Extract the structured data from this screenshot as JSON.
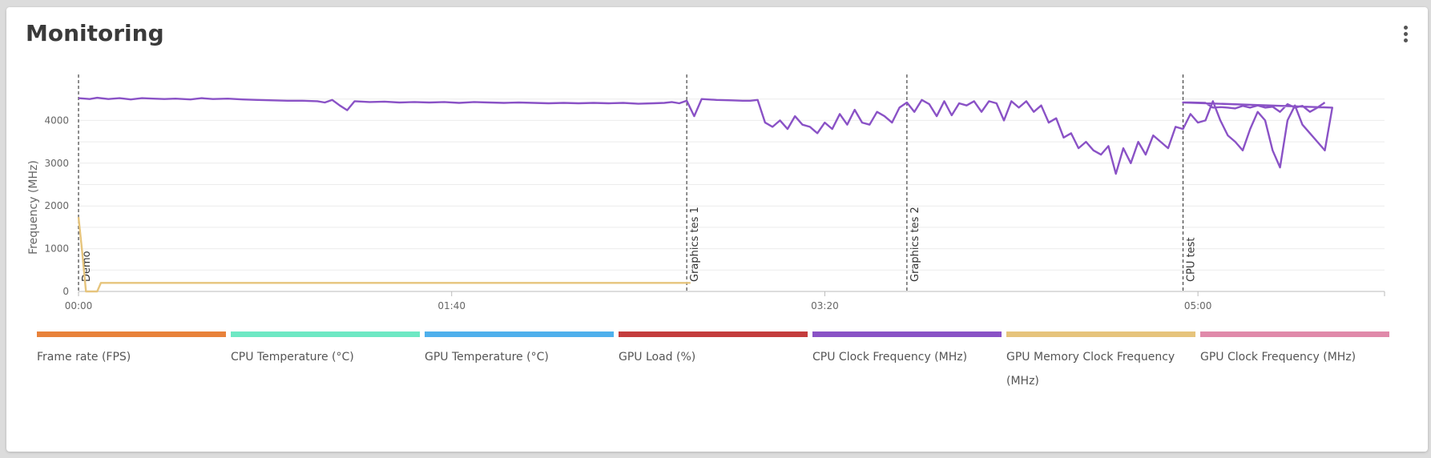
{
  "card": {
    "title": "Monitoring",
    "menu_icon": "more-vertical-icon"
  },
  "chart_data": {
    "type": "line",
    "ylabel": "Frequency (MHz)",
    "ylim": [
      0,
      5000
    ],
    "yticks": [
      0,
      1000,
      2000,
      3000,
      4000
    ],
    "xlim": [
      0,
      350
    ],
    "xticks": [
      {
        "value": 0,
        "label": "00:00"
      },
      {
        "value": 100,
        "label": "01:40"
      },
      {
        "value": 200,
        "label": "03:20"
      },
      {
        "value": 300,
        "label": "05:00"
      }
    ],
    "markers": [
      {
        "x": 0,
        "label": "Demo"
      },
      {
        "x": 163,
        "label": "Graphics tes 1"
      },
      {
        "x": 222,
        "label": "Graphics tes 2"
      },
      {
        "x": 296,
        "label": "CPU test"
      }
    ],
    "legend": [
      {
        "name": "Frame rate (FPS)",
        "color": "#e8823a"
      },
      {
        "name": "CPU Temperature (°C)",
        "color": "#6ee8c4"
      },
      {
        "name": "GPU Temperature (°C)",
        "color": "#4fb0ec"
      },
      {
        "name": "GPU Load (%)",
        "color": "#c43c3c"
      },
      {
        "name": "CPU Clock Frequency (MHz)",
        "color": "#8a52c6"
      },
      {
        "name": "GPU Memory Clock Frequency (MHz)",
        "color": "#e6c47c"
      },
      {
        "name": "GPU Clock Frequency (MHz)",
        "color": "#e08aaa"
      }
    ],
    "series": [
      {
        "name": "CPU Clock Frequency (MHz)",
        "color": "#8a52c6",
        "points": [
          [
            0,
            4520
          ],
          [
            3,
            4500
          ],
          [
            5,
            4530
          ],
          [
            8,
            4500
          ],
          [
            11,
            4520
          ],
          [
            14,
            4490
          ],
          [
            17,
            4520
          ],
          [
            20,
            4510
          ],
          [
            23,
            4500
          ],
          [
            26,
            4510
          ],
          [
            30,
            4490
          ],
          [
            33,
            4520
          ],
          [
            36,
            4500
          ],
          [
            40,
            4510
          ],
          [
            44,
            4490
          ],
          [
            48,
            4480
          ],
          [
            52,
            4470
          ],
          [
            56,
            4460
          ],
          [
            60,
            4460
          ],
          [
            64,
            4450
          ],
          [
            66,
            4420
          ],
          [
            68,
            4480
          ],
          [
            70,
            4350
          ],
          [
            72,
            4240
          ],
          [
            74,
            4450
          ],
          [
            78,
            4430
          ],
          [
            82,
            4440
          ],
          [
            86,
            4420
          ],
          [
            90,
            4430
          ],
          [
            94,
            4420
          ],
          [
            98,
            4430
          ],
          [
            102,
            4410
          ],
          [
            106,
            4430
          ],
          [
            110,
            4420
          ],
          [
            114,
            4410
          ],
          [
            118,
            4420
          ],
          [
            122,
            4410
          ],
          [
            126,
            4400
          ],
          [
            130,
            4410
          ],
          [
            134,
            4400
          ],
          [
            138,
            4410
          ],
          [
            142,
            4400
          ],
          [
            146,
            4410
          ],
          [
            150,
            4390
          ],
          [
            154,
            4400
          ],
          [
            157,
            4410
          ],
          [
            159,
            4430
          ],
          [
            161,
            4400
          ],
          [
            163,
            4460
          ],
          [
            165,
            4100
          ],
          [
            167,
            4500
          ],
          [
            171,
            4480
          ],
          [
            175,
            4470
          ],
          [
            178,
            4460
          ],
          [
            180,
            4460
          ],
          [
            182,
            4480
          ],
          [
            184,
            3950
          ],
          [
            186,
            3850
          ],
          [
            188,
            4000
          ],
          [
            190,
            3800
          ],
          [
            192,
            4100
          ],
          [
            194,
            3900
          ],
          [
            196,
            3850
          ],
          [
            198,
            3700
          ],
          [
            200,
            3950
          ],
          [
            202,
            3800
          ],
          [
            204,
            4150
          ],
          [
            206,
            3900
          ],
          [
            208,
            4250
          ],
          [
            210,
            3950
          ],
          [
            212,
            3900
          ],
          [
            214,
            4200
          ],
          [
            216,
            4100
          ],
          [
            218,
            3950
          ],
          [
            220,
            4300
          ],
          [
            222,
            4420
          ],
          [
            224,
            4200
          ],
          [
            226,
            4480
          ],
          [
            228,
            4380
          ],
          [
            230,
            4100
          ],
          [
            232,
            4450
          ],
          [
            234,
            4120
          ],
          [
            236,
            4400
          ],
          [
            238,
            4350
          ],
          [
            240,
            4450
          ],
          [
            242,
            4200
          ],
          [
            244,
            4450
          ],
          [
            246,
            4400
          ],
          [
            248,
            4000
          ],
          [
            250,
            4450
          ],
          [
            252,
            4300
          ],
          [
            254,
            4450
          ],
          [
            256,
            4200
          ],
          [
            258,
            4350
          ],
          [
            260,
            3950
          ],
          [
            262,
            4050
          ],
          [
            264,
            3600
          ],
          [
            266,
            3700
          ],
          [
            268,
            3350
          ],
          [
            270,
            3500
          ],
          [
            272,
            3300
          ],
          [
            274,
            3200
          ],
          [
            276,
            3400
          ],
          [
            278,
            2750
          ],
          [
            280,
            3350
          ],
          [
            282,
            3000
          ],
          [
            284,
            3500
          ],
          [
            286,
            3200
          ],
          [
            288,
            3650
          ],
          [
            290,
            3500
          ],
          [
            292,
            3350
          ],
          [
            294,
            3850
          ],
          [
            296,
            3800
          ],
          [
            298,
            4150
          ],
          [
            300,
            3950
          ],
          [
            302,
            4000
          ],
          [
            304,
            4450
          ],
          [
            306,
            4000
          ],
          [
            308,
            3650
          ],
          [
            310,
            3500
          ],
          [
            312,
            3300
          ],
          [
            314,
            3800
          ],
          [
            316,
            4200
          ],
          [
            318,
            4000
          ],
          [
            320,
            3300
          ],
          [
            322,
            2900
          ],
          [
            324,
            4000
          ],
          [
            326,
            4350
          ],
          [
            328,
            3900
          ],
          [
            330,
            3700
          ],
          [
            332,
            3500
          ],
          [
            334,
            3300
          ],
          [
            336,
            4300
          ],
          [
            296,
            4420
          ],
          [
            298,
            4420
          ],
          [
            302,
            4410
          ],
          [
            304,
            4300
          ],
          [
            306,
            4310
          ],
          [
            308,
            4300
          ],
          [
            310,
            4280
          ],
          [
            312,
            4340
          ],
          [
            314,
            4300
          ],
          [
            316,
            4350
          ],
          [
            318,
            4300
          ],
          [
            320,
            4320
          ],
          [
            322,
            4200
          ],
          [
            324,
            4380
          ],
          [
            326,
            4300
          ],
          [
            328,
            4340
          ],
          [
            330,
            4200
          ],
          [
            332,
            4300
          ],
          [
            334,
            4420
          ]
        ]
      },
      {
        "name": "GPU Memory Clock Frequency (MHz)",
        "color": "#e6c47c",
        "points": [
          [
            0,
            1740
          ],
          [
            1,
            900
          ],
          [
            2,
            0
          ],
          [
            5,
            0
          ],
          [
            6,
            200
          ],
          [
            10,
            200
          ],
          [
            14,
            200
          ],
          [
            18,
            200
          ],
          [
            20,
            200
          ],
          [
            22,
            200
          ],
          [
            24,
            200
          ],
          [
            26,
            200
          ],
          [
            28,
            200
          ],
          [
            30,
            200
          ],
          [
            32,
            200
          ],
          [
            34,
            200
          ],
          [
            36,
            200
          ],
          [
            38,
            200
          ],
          [
            40,
            200
          ],
          [
            42,
            200
          ],
          [
            44,
            200
          ],
          [
            46,
            200
          ],
          [
            48,
            200
          ],
          [
            50,
            200
          ],
          [
            52,
            200
          ],
          [
            54,
            200
          ],
          [
            56,
            200
          ],
          [
            58,
            200
          ],
          [
            60,
            200
          ],
          [
            62,
            200
          ],
          [
            64,
            200
          ],
          [
            66,
            200
          ],
          [
            68,
            200
          ],
          [
            70,
            200
          ],
          [
            72,
            200
          ],
          [
            74,
            200
          ],
          [
            76,
            200
          ],
          [
            78,
            200
          ],
          [
            80,
            200
          ],
          [
            82,
            200
          ],
          [
            84,
            200
          ],
          [
            86,
            200
          ],
          [
            88,
            200
          ],
          [
            90,
            200
          ],
          [
            92,
            200
          ],
          [
            94,
            200
          ],
          [
            96,
            200
          ],
          [
            98,
            200
          ],
          [
            100,
            200
          ],
          [
            102,
            200
          ],
          [
            104,
            200
          ],
          [
            106,
            200
          ],
          [
            108,
            200
          ],
          [
            110,
            200
          ],
          [
            112,
            200
          ],
          [
            114,
            200
          ],
          [
            116,
            200
          ],
          [
            118,
            200
          ],
          [
            120,
            200
          ],
          [
            122,
            200
          ],
          [
            124,
            200
          ],
          [
            126,
            200
          ],
          [
            128,
            200
          ],
          [
            130,
            200
          ],
          [
            132,
            200
          ],
          [
            134,
            200
          ],
          [
            136,
            200
          ],
          [
            138,
            200
          ],
          [
            140,
            200
          ],
          [
            142,
            200
          ],
          [
            144,
            200
          ],
          [
            146,
            200
          ],
          [
            148,
            200
          ],
          [
            150,
            200
          ],
          [
            152,
            200
          ],
          [
            154,
            200
          ],
          [
            156,
            200
          ],
          [
            158,
            200
          ],
          [
            160,
            200
          ],
          [
            162,
            200
          ],
          [
            164,
            200
          ]
        ]
      }
    ]
  }
}
